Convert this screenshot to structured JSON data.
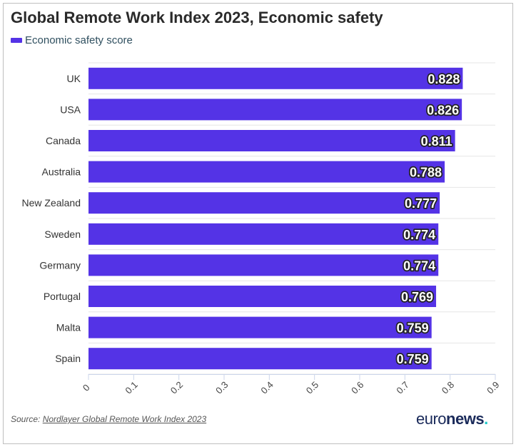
{
  "chart_data": {
    "type": "bar",
    "orientation": "horizontal",
    "title": "Global Remote Work Index 2023, Economic safety",
    "categories": [
      "UK",
      "USA",
      "Canada",
      "Australia",
      "New Zealand",
      "Sweden",
      "Germany",
      "Portugal",
      "Malta",
      "Spain"
    ],
    "series": [
      {
        "name": "Economic safety score",
        "values": [
          0.828,
          0.826,
          0.811,
          0.788,
          0.777,
          0.774,
          0.774,
          0.769,
          0.759,
          0.759
        ]
      }
    ],
    "value_labels": [
      "0.828",
      "0.826",
      "0.811",
      "0.788",
      "0.777",
      "0.774",
      "0.774",
      "0.769",
      "0.759",
      "0.759"
    ],
    "xlim": [
      0,
      0.9
    ],
    "x_ticks": [
      "0",
      "0.1",
      "0.2",
      "0.3",
      "0.4",
      "0.5",
      "0.6",
      "0.7",
      "0.8",
      "0.9"
    ],
    "grid": true,
    "legend_position": "top-left",
    "bar_color": "#5433e6"
  },
  "footer": {
    "source_prefix": "Source: ",
    "source_link": "Nordlayer Global Remote Work Index 2023"
  },
  "logo": {
    "part1": "euro",
    "part2": "news",
    "part3": "."
  }
}
